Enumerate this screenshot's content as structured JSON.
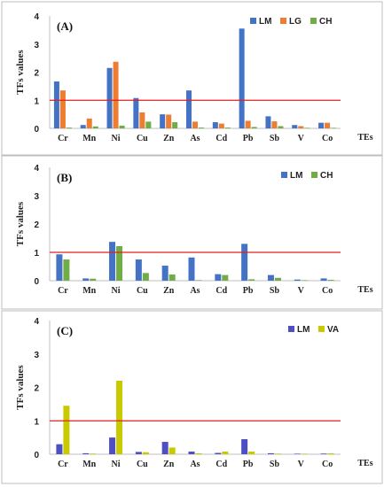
{
  "colors": {
    "LM": "#4472C4",
    "LG": "#ED7D31",
    "CH": "#70AD47",
    "LM_C": "#4F4FC4",
    "VA": "#C9C900",
    "threshold": "#E02020"
  },
  "chart_data": [
    {
      "type": "bar",
      "panel_label": "(A)",
      "ylabel": "TFs values",
      "xlabel": "TEs",
      "categories": [
        "Cr",
        "Mn",
        "Ni",
        "Cu",
        "Zn",
        "As",
        "Cd",
        "Pb",
        "Sb",
        "V",
        "Co"
      ],
      "yticks": [
        "0",
        "1",
        "2",
        "3",
        "4"
      ],
      "ylim": [
        0,
        4
      ],
      "threshold": 1,
      "legend_position": "top-right",
      "series": [
        {
          "name": "LM",
          "color_key": "LM",
          "values": [
            1.67,
            0.12,
            2.15,
            1.08,
            0.5,
            1.35,
            0.22,
            3.55,
            0.43,
            0.12,
            0.2
          ]
        },
        {
          "name": "LG",
          "color_key": "LG",
          "values": [
            1.35,
            0.35,
            2.37,
            0.57,
            0.49,
            0.24,
            0.17,
            0.27,
            0.25,
            0.08,
            0.2
          ]
        },
        {
          "name": "CH",
          "color_key": "CH",
          "values": [
            0.03,
            0.07,
            0.1,
            0.24,
            0.22,
            0.03,
            0.03,
            0.05,
            0.08,
            0.02,
            0.02
          ]
        }
      ]
    },
    {
      "type": "bar",
      "panel_label": "(B)",
      "ylabel": "TFs values",
      "xlabel": "TEs",
      "categories": [
        "Cr",
        "Mn",
        "Ni",
        "Cu",
        "Zn",
        "As",
        "Cd",
        "Pb",
        "Sb",
        "V",
        "Co"
      ],
      "yticks": [
        "0",
        "1",
        "2",
        "3",
        "4"
      ],
      "ylim": [
        0,
        4
      ],
      "threshold": 1,
      "legend_position": "top-right",
      "series": [
        {
          "name": "LM",
          "color_key": "LM",
          "values": [
            0.93,
            0.08,
            1.37,
            0.75,
            0.53,
            0.82,
            0.23,
            1.3,
            0.2,
            0.04,
            0.08
          ]
        },
        {
          "name": "CH",
          "color_key": "CH",
          "values": [
            0.75,
            0.07,
            1.22,
            0.27,
            0.22,
            0.02,
            0.2,
            0.05,
            0.1,
            0.01,
            0.03
          ]
        }
      ]
    },
    {
      "type": "bar",
      "panel_label": "(C)",
      "ylabel": "TFs values",
      "xlabel": "TEs",
      "categories": [
        "Cr",
        "Mn",
        "Ni",
        "Cu",
        "Zn",
        "As",
        "Cd",
        "Pb",
        "Sb",
        "V",
        "Co"
      ],
      "yticks": [
        "0",
        "1",
        "2",
        "3",
        "4"
      ],
      "ylim": [
        0,
        4
      ],
      "threshold": 1,
      "legend_position": "top-right",
      "series": [
        {
          "name": "LM",
          "color_key": "LM_C",
          "values": [
            0.3,
            0.03,
            0.5,
            0.07,
            0.37,
            0.08,
            0.04,
            0.45,
            0.03,
            0.01,
            0.02
          ]
        },
        {
          "name": "VA",
          "color_key": "VA",
          "values": [
            1.45,
            0.02,
            2.2,
            0.06,
            0.2,
            0.03,
            0.08,
            0.08,
            0.02,
            0.01,
            0.03
          ]
        }
      ]
    }
  ]
}
